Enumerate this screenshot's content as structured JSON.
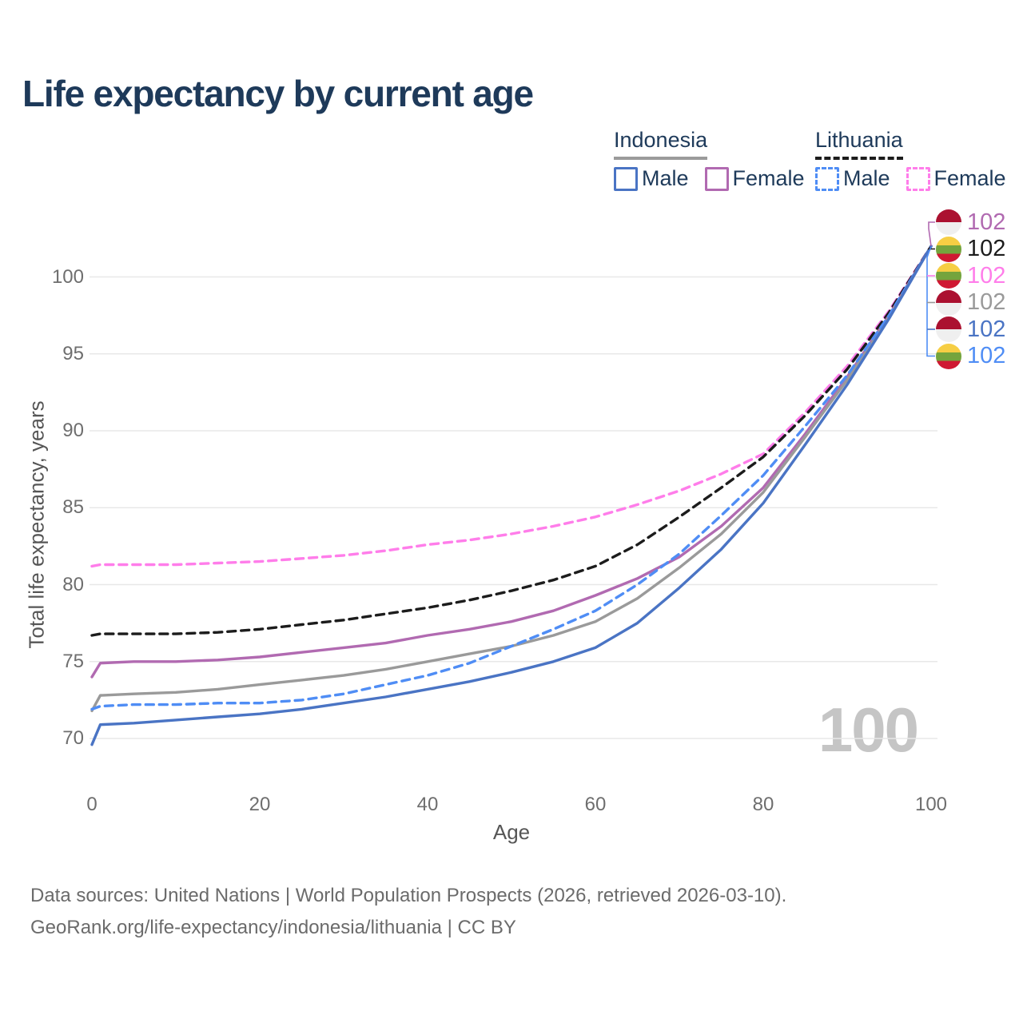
{
  "title": "Life expectancy by current age",
  "legend": {
    "groups": [
      {
        "name": "Indonesia",
        "underline_color": "#9b9b9b",
        "underline_style": "solid",
        "items": [
          {
            "label": "Male",
            "color": "#4a74c4",
            "style": "solid"
          },
          {
            "label": "Female",
            "color": "#b16ab1",
            "style": "solid"
          }
        ]
      },
      {
        "name": "Lithuania",
        "underline_color": "#1c1c1c",
        "underline_style": "dashed",
        "items": [
          {
            "label": "Male",
            "color": "#4f8df5",
            "style": "dashed"
          },
          {
            "label": "Female",
            "color": "#ff7dea",
            "style": "dashed"
          }
        ]
      }
    ]
  },
  "chart_data": {
    "type": "line",
    "title": "Life expectancy by current age",
    "xlabel": "Age",
    "ylabel": "Total life expectancy, years",
    "x_ticks": [
      0,
      20,
      40,
      60,
      80,
      100
    ],
    "y_ticks": [
      70,
      75,
      80,
      85,
      90,
      95,
      100
    ],
    "xlim": [
      0,
      100
    ],
    "ylim": [
      68.5,
      103
    ],
    "grid": "horizontal-only",
    "legend_position": "top-right",
    "ages": [
      0,
      1,
      5,
      10,
      15,
      20,
      25,
      30,
      35,
      40,
      45,
      50,
      55,
      60,
      65,
      70,
      75,
      80,
      85,
      90,
      95,
      100
    ],
    "series": [
      {
        "name": "Lithuania Female",
        "country": "Lithuania",
        "sex": "Female",
        "color": "#ff7dea",
        "dashed": true,
        "end_label": "102",
        "values": [
          81.2,
          81.3,
          81.3,
          81.3,
          81.4,
          81.5,
          81.7,
          81.9,
          82.2,
          82.6,
          82.9,
          83.3,
          83.8,
          84.4,
          85.2,
          86.1,
          87.2,
          88.5,
          91.2,
          94.2,
          97.8,
          102
        ]
      },
      {
        "name": "Lithuania Both sexes",
        "country": "Lithuania",
        "sex": "Both",
        "color": "#1c1c1c",
        "dashed": true,
        "end_label": "102",
        "values": [
          76.7,
          76.8,
          76.8,
          76.8,
          76.9,
          77.1,
          77.4,
          77.7,
          78.1,
          78.5,
          79.0,
          79.6,
          80.3,
          81.2,
          82.6,
          84.4,
          86.3,
          88.3,
          91.0,
          94.0,
          97.7,
          102
        ]
      },
      {
        "name": "Indonesia Female",
        "country": "Indonesia",
        "sex": "Female",
        "color": "#b16ab1",
        "dashed": false,
        "end_label": "102",
        "values": [
          74.0,
          74.9,
          75.0,
          75.0,
          75.1,
          75.3,
          75.6,
          75.9,
          76.2,
          76.7,
          77.1,
          77.6,
          78.3,
          79.3,
          80.4,
          81.8,
          83.8,
          86.3,
          89.8,
          93.5,
          97.5,
          102
        ]
      },
      {
        "name": "Indonesia Both sexes",
        "country": "Indonesia",
        "sex": "Both",
        "color": "#9a9a9a",
        "dashed": false,
        "end_label": "102",
        "values": [
          71.8,
          72.8,
          72.9,
          73.0,
          73.2,
          73.5,
          73.8,
          74.1,
          74.5,
          75.0,
          75.5,
          76.0,
          76.7,
          77.6,
          79.1,
          81.1,
          83.3,
          86.0,
          89.6,
          93.3,
          97.4,
          102
        ]
      },
      {
        "name": "Lithuania Male",
        "country": "Lithuania",
        "sex": "Male",
        "color": "#4f8df5",
        "dashed": true,
        "end_label": "102",
        "values": [
          71.9,
          72.1,
          72.2,
          72.2,
          72.3,
          72.3,
          72.5,
          72.9,
          73.5,
          74.1,
          74.9,
          76.0,
          77.1,
          78.3,
          80.0,
          82.0,
          84.5,
          87.1,
          90.3,
          93.6,
          97.5,
          102
        ]
      },
      {
        "name": "Indonesia Male",
        "country": "Indonesia",
        "sex": "Male",
        "color": "#4a74c4",
        "dashed": false,
        "end_label": "102",
        "values": [
          69.6,
          70.9,
          71.0,
          71.2,
          71.4,
          71.6,
          71.9,
          72.3,
          72.7,
          73.2,
          73.7,
          74.3,
          75.0,
          75.9,
          77.5,
          79.8,
          82.3,
          85.3,
          89.1,
          93.0,
          97.3,
          102
        ]
      }
    ]
  },
  "end_labels": [
    {
      "value": "102",
      "flag": "indonesia",
      "color": "#b16ab1",
      "series": "Indonesia Female"
    },
    {
      "value": "102",
      "flag": "lithuania",
      "color": "#1c1c1c",
      "series": "Lithuania Both sexes"
    },
    {
      "value": "102",
      "flag": "lithuania",
      "color": "#ff7dea",
      "series": "Lithuania Female"
    },
    {
      "value": "102",
      "flag": "indonesia",
      "color": "#9a9a9a",
      "series": "Indonesia Both sexes"
    },
    {
      "value": "102",
      "flag": "indonesia",
      "color": "#4a74c4",
      "series": "Indonesia Male"
    },
    {
      "value": "102",
      "flag": "lithuania",
      "color": "#4f8df5",
      "series": "Lithuania Male"
    }
  ],
  "flag_colors": {
    "indonesia": [
      "#ab1130",
      "#efefef"
    ],
    "lithuania": [
      "#f6ce44",
      "#74a43d",
      "#cf1832"
    ]
  },
  "watermark": "100",
  "footer": {
    "line1": "Data sources: United Nations | World Population Prospects (2026, retrieved 2026-03-10).",
    "line2": "GeoRank.org/life-expectancy/indonesia/lithuania | CC BY"
  }
}
